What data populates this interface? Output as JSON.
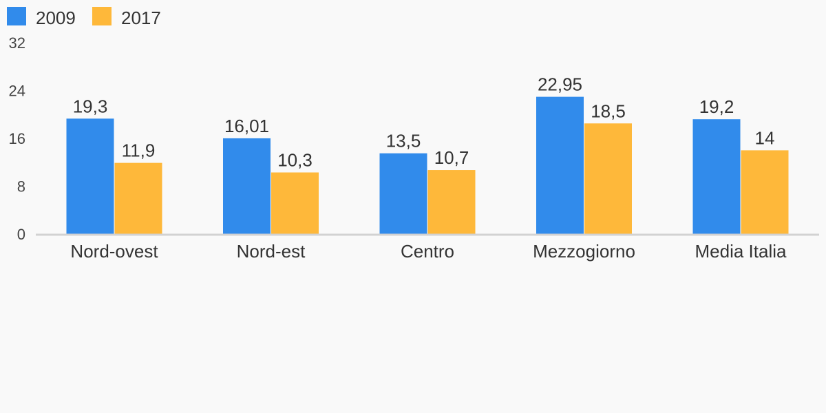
{
  "chart_data": {
    "type": "bar",
    "categories": [
      "Nord-ovest",
      "Nord-est",
      "Centro",
      "Mezzogiorno",
      "Media Italia"
    ],
    "series": [
      {
        "name": "2009",
        "values": [
          19.3,
          16.01,
          13.5,
          22.95,
          19.2
        ],
        "labels": [
          "19,3",
          "16,01",
          "13,5",
          "22,95",
          "19,2"
        ],
        "color": "#318BEB"
      },
      {
        "name": "2017",
        "values": [
          11.9,
          10.3,
          10.7,
          18.5,
          14
        ],
        "labels": [
          "11,9",
          "10,3",
          "10,7",
          "18,5",
          "14"
        ],
        "color": "#FEB83A"
      }
    ],
    "yticks": [
      "0",
      "8",
      "16",
      "24",
      "32"
    ],
    "ylim": [
      0,
      32
    ],
    "grid": false,
    "legend_position": "top-left",
    "axis_color": "#d2d2d2"
  }
}
